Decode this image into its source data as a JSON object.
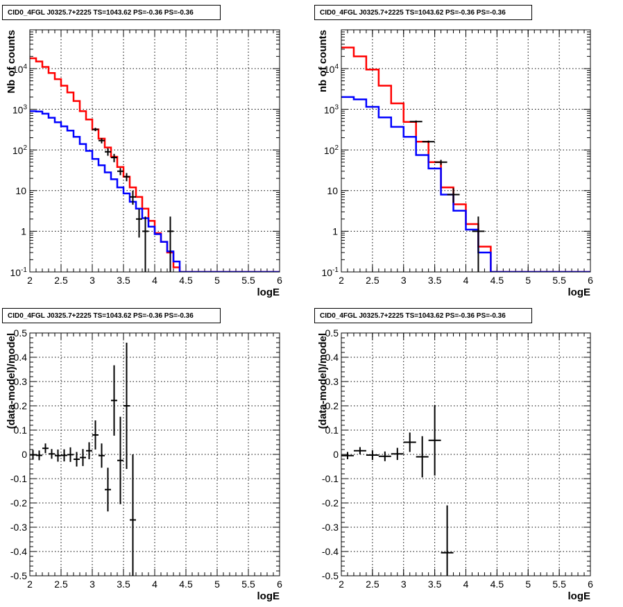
{
  "panels": [
    {
      "title": "CID0_4FGL J0325.7+2225 TS=1043.62 PS=-0.36 PS=-0.36",
      "xlabel": "logE",
      "ylabel": "Nb of counts"
    },
    {
      "title": "CID0_4FGL J0325.7+2225 TS=1043.62 PS=-0.36 PS=-0.36",
      "xlabel": "logE",
      "ylabel": "nb of counts"
    },
    {
      "title": "CID0_4FGL J0325.7+2225 TS=1043.62 PS=-0.36 PS=-0.36",
      "xlabel": "logE",
      "ylabel": "(data-model)/model"
    },
    {
      "title": "CID0_4FGL J0325.7+2225 TS=1043.62 PS=-0.36 PS=-0.36",
      "xlabel": "logE",
      "ylabel": "(data-model)/model"
    }
  ],
  "colors": {
    "model_total": "#ff0000",
    "model_source": "#0000ff",
    "data": "#000000",
    "grid": "#000000"
  },
  "chart_data": [
    {
      "type": "line",
      "title": "CID0_4FGL J0325.7+2225 TS=1043.62 PS=-0.36 PS=-0.36",
      "xlabel": "logE",
      "ylabel": "Nb of counts",
      "xlim": [
        2,
        6
      ],
      "ylim": [
        0.1,
        90000
      ],
      "yscale": "log",
      "grid": true,
      "xticks": [
        "2",
        "2.5",
        "3",
        "3.5",
        "4",
        "4.5",
        "5",
        "5.5",
        "6"
      ],
      "yticks": [
        "10^-1",
        "1",
        "10",
        "10^2",
        "10^3",
        "10^4"
      ],
      "bin_edges": [
        2.0,
        2.1,
        2.2,
        2.3,
        2.4,
        2.5,
        2.6,
        2.7,
        2.8,
        2.9,
        3.0,
        3.1,
        3.2,
        3.3,
        3.4,
        3.5,
        3.6,
        3.7,
        3.8,
        3.9,
        4.0,
        4.1,
        4.2,
        4.3,
        4.4,
        4.5,
        4.6,
        4.7,
        4.8,
        4.9,
        5.0,
        5.1,
        5.2,
        5.3,
        5.4,
        5.5,
        5.6,
        5.7,
        5.8,
        5.9,
        6.0
      ],
      "series": [
        {
          "name": "",
          "style": "step",
          "color": "#ff0000",
          "values": [
            18000,
            15000,
            11000,
            7800,
            5500,
            3800,
            2600,
            1600,
            900,
            560,
            320,
            190,
            115,
            68,
            38,
            22,
            12,
            7,
            3.6,
            1.8,
            0.9,
            0.55,
            0.3,
            0.13,
            0.1,
            0.1,
            0.1,
            0.1,
            0.1,
            0.1,
            0.1,
            0.1,
            0.1,
            0.1,
            0.1,
            0.1,
            0.1,
            0.1,
            0.1,
            0.1
          ]
        },
        {
          "name": "",
          "style": "step",
          "color": "#0000ff",
          "values": [
            900,
            880,
            780,
            620,
            480,
            380,
            300,
            210,
            140,
            95,
            60,
            42,
            28,
            19,
            12,
            8.5,
            5.3,
            3.6,
            2.1,
            1.3,
            0.85,
            0.55,
            0.32,
            0.18,
            0.1,
            0.1,
            0.1,
            0.1,
            0.1,
            0.1,
            0.1,
            0.1,
            0.1,
            0.1,
            0.1,
            0.1,
            0.1,
            0.1,
            0.1,
            0.1
          ]
        },
        {
          "name": "",
          "style": "points",
          "color": "#000000",
          "x": [
            3.05,
            3.15,
            3.25,
            3.35,
            3.45,
            3.55,
            3.65,
            3.75,
            3.85,
            4.25
          ],
          "y": [
            320,
            170,
            90,
            65,
            30,
            22,
            7,
            2,
            1,
            1
          ],
          "ylo": [
            290,
            145,
            72,
            50,
            24,
            17,
            4.5,
            0.7,
            0.1,
            0.1
          ],
          "yhi": [
            350,
            195,
            110,
            80,
            36,
            27,
            10,
            3.5,
            2.3,
            2.3
          ]
        }
      ]
    },
    {
      "type": "line",
      "title": "CID0_4FGL J0325.7+2225 TS=1043.62 PS=-0.36 PS=-0.36",
      "xlabel": "logE",
      "ylabel": "nb of counts",
      "xlim": [
        2,
        6
      ],
      "ylim": [
        0.1,
        90000
      ],
      "yscale": "log",
      "grid": true,
      "xticks": [
        "2",
        "2.5",
        "3",
        "3.5",
        "4",
        "4.5",
        "5",
        "5.5",
        "6"
      ],
      "yticks": [
        "10^-1",
        "1",
        "10",
        "10^2",
        "10^3",
        "10^4"
      ],
      "bin_edges": [
        2.0,
        2.2,
        2.4,
        2.6,
        2.8,
        3.0,
        3.2,
        3.4,
        3.6,
        3.8,
        4.0,
        4.2,
        4.4,
        4.6,
        4.8,
        5.0,
        5.2,
        5.4,
        5.6,
        5.8,
        6.0
      ],
      "series": [
        {
          "name": "",
          "style": "step",
          "color": "#ff0000",
          "values": [
            33000,
            20000,
            9500,
            3800,
            1400,
            490,
            160,
            50,
            12,
            4.6,
            1.5,
            0.42,
            0.1,
            0.1,
            0.1,
            0.1,
            0.1,
            0.1,
            0.1,
            0.1
          ]
        },
        {
          "name": "",
          "style": "step",
          "color": "#0000ff",
          "values": [
            2000,
            1750,
            1150,
            630,
            370,
            210,
            75,
            35,
            8,
            3.2,
            1.1,
            0.3,
            0.1,
            0.1,
            0.1,
            0.1,
            0.1,
            0.1,
            0.1,
            0.1
          ]
        },
        {
          "name": "",
          "style": "points",
          "color": "#000000",
          "x": [
            3.2,
            3.4,
            3.6,
            3.8,
            4.2
          ],
          "y": [
            500,
            160,
            50,
            8,
            1
          ],
          "ylo": [
            470,
            150,
            43,
            5,
            0.1
          ],
          "yhi": [
            530,
            170,
            57,
            11.5,
            2.3
          ]
        }
      ]
    },
    {
      "type": "scatter",
      "title": "CID0_4FGL J0325.7+2225 TS=1043.62 PS=-0.36 PS=-0.36",
      "xlabel": "logE",
      "ylabel": "(data-model)/model",
      "xlim": [
        2,
        6
      ],
      "ylim": [
        -0.5,
        0.5
      ],
      "grid": true,
      "xticks": [
        "2",
        "2.5",
        "3",
        "3.5",
        "4",
        "4.5",
        "5",
        "5.5",
        "6"
      ],
      "yticks": [
        "-0.5",
        "-0.4",
        "-0.3",
        "-0.2",
        "-0.1",
        "0",
        "0.1",
        "0.2",
        "0.3",
        "0.4",
        "0.5"
      ],
      "series": [
        {
          "name": "",
          "color": "#000000",
          "x": [
            2.05,
            2.15,
            2.25,
            2.35,
            2.45,
            2.55,
            2.65,
            2.75,
            2.85,
            2.95,
            3.05,
            3.15,
            3.25,
            3.35,
            3.45,
            3.55,
            3.65
          ],
          "y": [
            -0.002,
            -0.004,
            0.025,
            0.002,
            -0.005,
            -0.004,
            -0.001,
            -0.02,
            -0.013,
            0.015,
            0.08,
            -0.005,
            -0.145,
            0.222,
            -0.025,
            0.2,
            -0.27
          ],
          "err": [
            0.02,
            0.02,
            0.02,
            0.02,
            0.025,
            0.025,
            0.03,
            0.03,
            0.035,
            0.035,
            0.06,
            0.05,
            0.09,
            0.145,
            0.18,
            0.26,
            0.27
          ],
          "xerr": 0.05
        }
      ]
    },
    {
      "type": "scatter",
      "title": "CID0_4FGL J0325.7+2225 TS=1043.62 PS=-0.36 PS=-0.36",
      "xlabel": "logE",
      "ylabel": "(data-model)/model",
      "xlim": [
        2,
        6
      ],
      "ylim": [
        -0.5,
        0.5
      ],
      "grid": true,
      "xticks": [
        "2",
        "2.5",
        "3",
        "3.5",
        "4",
        "4.5",
        "5",
        "5.5",
        "6"
      ],
      "yticks": [
        "-0.5",
        "-0.4",
        "-0.3",
        "-0.2",
        "-0.1",
        "0",
        "0.1",
        "0.2",
        "0.3",
        "0.4",
        "0.5"
      ],
      "series": [
        {
          "name": "",
          "color": "#000000",
          "x": [
            2.1,
            2.3,
            2.5,
            2.7,
            2.9,
            3.1,
            3.3,
            3.5,
            3.7
          ],
          "y": [
            -0.005,
            0.015,
            -0.003,
            -0.008,
            0.002,
            0.05,
            -0.01,
            0.058,
            -0.405
          ],
          "err": [
            0.015,
            0.015,
            0.02,
            0.02,
            0.025,
            0.04,
            0.085,
            0.145,
            0.195
          ],
          "xerr": 0.1
        }
      ]
    }
  ]
}
